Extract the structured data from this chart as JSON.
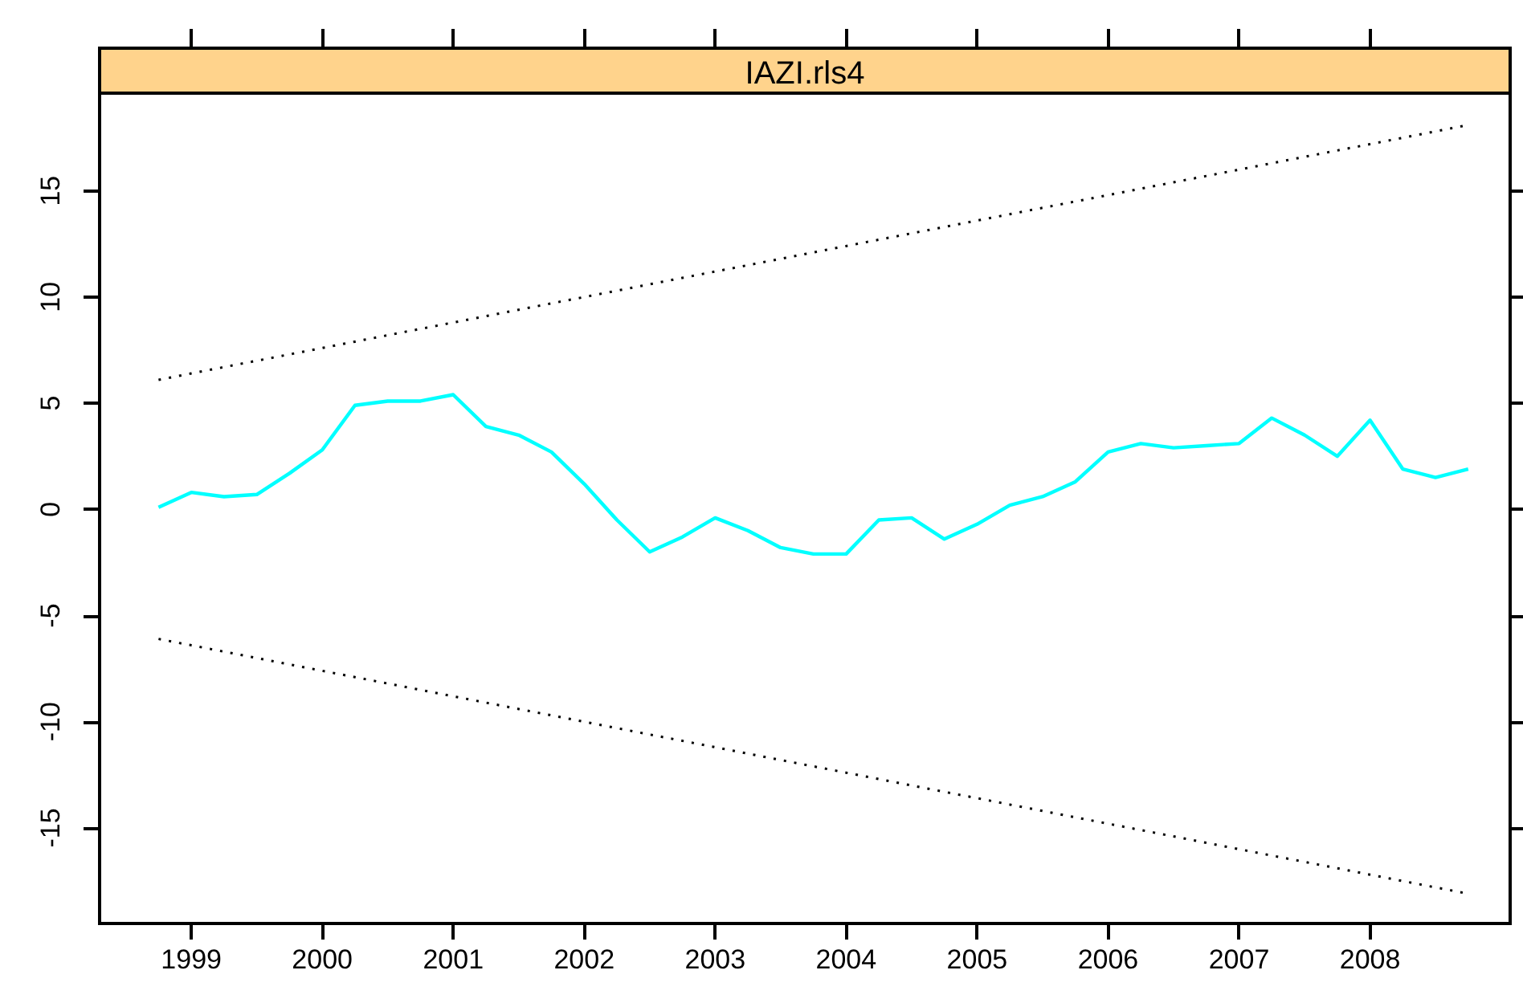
{
  "chart_data": {
    "type": "line",
    "title": "IAZI.rls4",
    "x": [
      1998.75,
      1999,
      1999.25,
      1999.5,
      1999.75,
      2000,
      2000.25,
      2000.5,
      2000.75,
      2001,
      2001.25,
      2001.5,
      2001.75,
      2002,
      2002.25,
      2002.5,
      2002.75,
      2003,
      2003.25,
      2003.5,
      2003.75,
      2004,
      2004.25,
      2004.5,
      2004.75,
      2005,
      2005.25,
      2005.5,
      2005.75,
      2006,
      2006.25,
      2006.5,
      2006.75,
      2007,
      2007.25,
      2007.5,
      2007.75,
      2008,
      2008.25,
      2008.5,
      2008.75
    ],
    "series": [
      {
        "color": "#00ffff",
        "values": [
          0.1,
          0.8,
          0.6,
          0.7,
          1.7,
          2.8,
          4.9,
          5.1,
          5.1,
          5.4,
          3.9,
          3.5,
          2.7,
          1.2,
          -0.5,
          -2.0,
          -1.3,
          -0.4,
          -1.0,
          -1.8,
          -2.1,
          -2.1,
          -0.5,
          -0.4,
          -1.4,
          -0.7,
          0.2,
          0.6,
          1.3,
          2.7,
          3.1,
          2.9,
          3.0,
          3.1,
          4.3,
          3.5,
          2.5,
          4.2,
          1.9,
          1.5,
          1.9
        ]
      },
      {
        "color": "#000000",
        "line_style": "dotted",
        "values": [
          6.1,
          6.4,
          6.7,
          7.0,
          7.3,
          7.6,
          7.9,
          8.2,
          8.5,
          8.8,
          9.1,
          9.4,
          9.7,
          10.0,
          10.3,
          10.6,
          10.9,
          11.2,
          11.5,
          11.8,
          12.1,
          12.4,
          12.7,
          13.0,
          13.3,
          13.6,
          13.9,
          14.2,
          14.5,
          14.8,
          15.1,
          15.4,
          15.7,
          16.0,
          16.3,
          16.6,
          16.9,
          17.2,
          17.5,
          17.8,
          18.1
        ]
      },
      {
        "color": "#000000",
        "line_style": "dotted",
        "values": [
          -6.1,
          -6.4,
          -6.7,
          -7.0,
          -7.3,
          -7.6,
          -7.9,
          -8.2,
          -8.5,
          -8.8,
          -9.1,
          -9.4,
          -9.7,
          -10.0,
          -10.3,
          -10.6,
          -10.9,
          -11.2,
          -11.5,
          -11.8,
          -12.1,
          -12.4,
          -12.7,
          -13.0,
          -13.3,
          -13.6,
          -13.9,
          -14.2,
          -14.5,
          -14.8,
          -15.1,
          -15.4,
          -15.7,
          -16.0,
          -16.3,
          -16.6,
          -16.9,
          -17.2,
          -17.5,
          -17.8,
          -18.1
        ]
      }
    ],
    "xlim": [
      1998.3,
      2009.07
    ],
    "xticks": [
      1999,
      2000,
      2001,
      2002,
      2003,
      2004,
      2005,
      2006,
      2007,
      2008
    ],
    "ylim": [
      -19.5,
      19.6
    ],
    "yticks": [
      -15,
      -10,
      -5,
      0,
      5,
      10,
      15
    ],
    "grid": false,
    "marker": "none",
    "line_style": "solid"
  }
}
